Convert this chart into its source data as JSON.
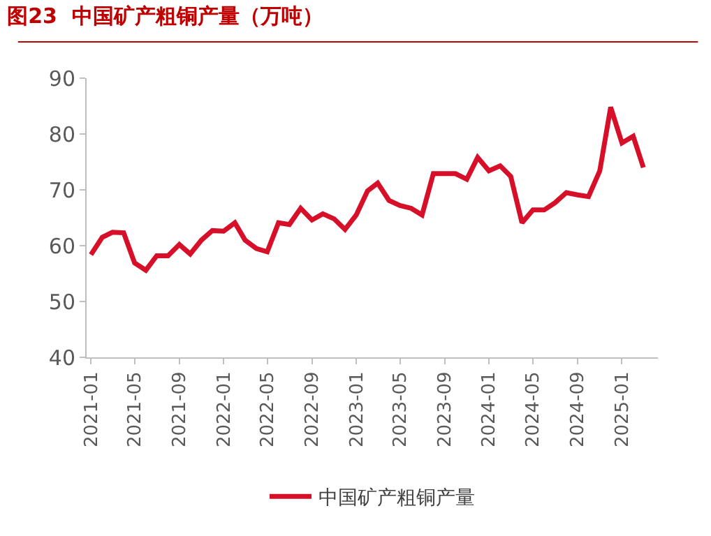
{
  "chart_data": {
    "type": "line",
    "title": "图23  中国矿产粗铜产量（万吨）",
    "x": [
      "2021-01",
      "2021-02",
      "2021-03",
      "2021-04",
      "2021-05",
      "2021-06",
      "2021-07",
      "2021-08",
      "2021-09",
      "2021-10",
      "2021-11",
      "2021-12",
      "2022-01",
      "2022-02",
      "2022-03",
      "2022-04",
      "2022-05",
      "2022-06",
      "2022-07",
      "2022-08",
      "2022-09",
      "2022-10",
      "2022-11",
      "2022-12",
      "2023-01",
      "2023-02",
      "2023-03",
      "2023-04",
      "2023-05",
      "2023-06",
      "2023-07",
      "2023-08",
      "2023-09",
      "2023-10",
      "2023-11",
      "2023-12",
      "2024-01",
      "2024-02",
      "2024-03",
      "2024-04",
      "2024-05",
      "2024-06",
      "2024-07",
      "2024-08",
      "2024-09",
      "2024-10",
      "2024-11",
      "2024-12",
      "2025-01",
      "2025-02",
      "2025-03"
    ],
    "series": [
      {
        "name": "中国矿产粗铜产量",
        "color": "#d7102a",
        "values": [
          58.4,
          61.5,
          62.4,
          62.3,
          56.9,
          55.6,
          58.2,
          58.2,
          60.2,
          58.5,
          61.0,
          62.7,
          62.6,
          64.1,
          61.0,
          59.5,
          58.9,
          64.1,
          63.8,
          66.7,
          64.6,
          65.7,
          64.8,
          62.9,
          65.5,
          69.8,
          71.2,
          68.1,
          67.2,
          66.7,
          65.5,
          72.9,
          72.9,
          72.9,
          71.9,
          75.8,
          73.4,
          74.3,
          72.4,
          64.1,
          66.4,
          66.4,
          67.7,
          69.5,
          69.1,
          68.8,
          73.4,
          84.8,
          78.4,
          79.6,
          74.0
        ]
      }
    ],
    "xlim": [
      "2020-12-20",
      "2025-04-10"
    ],
    "xticks": [
      "2021-01",
      "2021-05",
      "2021-09",
      "2022-01",
      "2022-05",
      "2022-09",
      "2023-01",
      "2023-05",
      "2023-09",
      "2024-01",
      "2024-05",
      "2024-09",
      "2025-01"
    ],
    "ylim": [
      40,
      90
    ],
    "yticks": [
      40,
      50,
      60,
      70,
      80,
      90
    ],
    "grid": false,
    "legend": "bottom",
    "marker": "none",
    "line_style": "solid"
  }
}
